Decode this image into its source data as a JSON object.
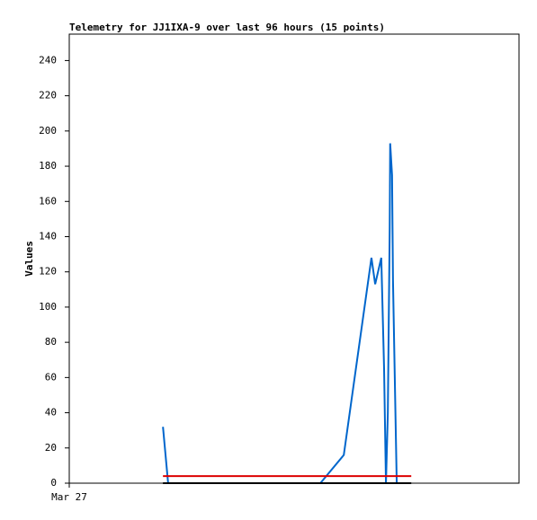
{
  "chart_data": {
    "type": "line",
    "title": "Telemetry for JJ1IXA-9 over last 96 hours (15 points)",
    "y_label": "Values",
    "xlim": [
      0,
      96
    ],
    "xticks": [
      {
        "value": 0,
        "label": "Mar 27"
      }
    ],
    "ylim": [
      0,
      255
    ],
    "yticks": [
      0,
      20,
      40,
      60,
      80,
      100,
      120,
      140,
      160,
      180,
      200,
      220,
      240
    ],
    "series": [
      {
        "color": "#0066cc",
        "x": [
          20.0,
          21.1,
          53.6,
          58.6,
          64.5,
          65.3,
          66.6,
          67.2,
          67.6,
          68.0,
          68.4,
          68.5,
          68.9,
          69.1,
          69.9
        ],
        "values": [
          32,
          0,
          0,
          16,
          128,
          113,
          128,
          65,
          0,
          40,
          145,
          193,
          175,
          115,
          0
        ]
      },
      {
        "color": "#dd0000",
        "x": [
          20.0,
          73.0
        ],
        "values": [
          4,
          4
        ]
      },
      {
        "color": "#000000",
        "x": [
          20.0,
          73.0
        ],
        "values": [
          0,
          0
        ]
      }
    ]
  }
}
